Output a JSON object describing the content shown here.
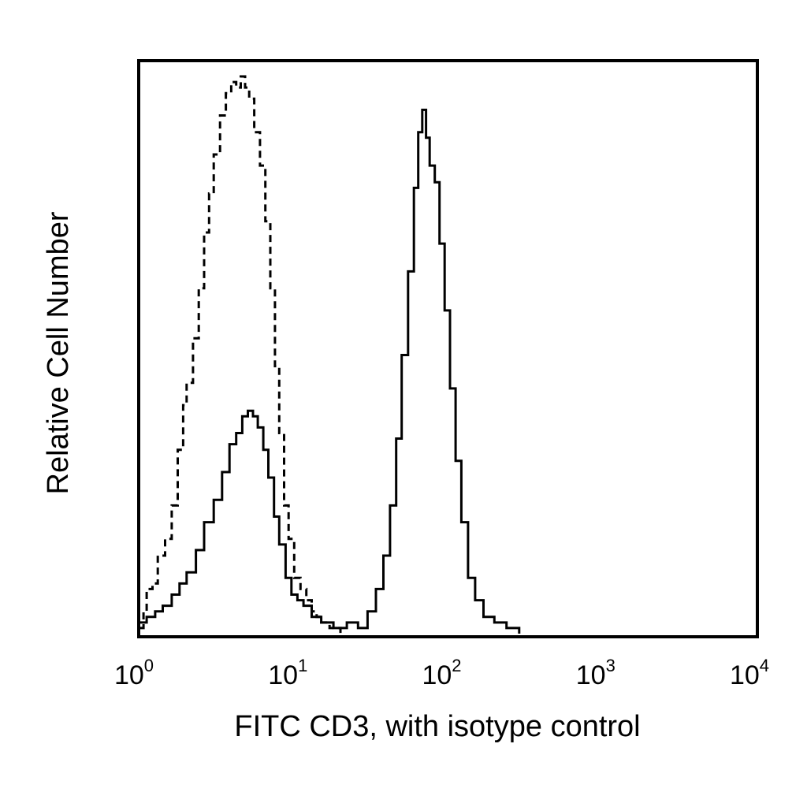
{
  "chart_data": {
    "type": "line",
    "title": "",
    "xlabel": "FITC CD3, with isotype control",
    "ylabel": "Relative Cell Number",
    "x_scale": "log",
    "xlim": [
      1,
      10000
    ],
    "ylim": [
      0,
      1.0
    ],
    "grid": false,
    "legend": "none",
    "x_ticks": [
      {
        "base": "10",
        "exp": "0",
        "value": 1
      },
      {
        "base": "10",
        "exp": "1",
        "value": 10
      },
      {
        "base": "10",
        "exp": "2",
        "value": 100
      },
      {
        "base": "10",
        "exp": "3",
        "value": 1000
      },
      {
        "base": "10",
        "exp": "4",
        "value": 10000
      }
    ],
    "series": [
      {
        "style": "dashed",
        "color": "#000000",
        "points": [
          [
            1.0,
            0.01
          ],
          [
            1.05,
            0.04
          ],
          [
            1.1,
            0.08
          ],
          [
            1.2,
            0.09
          ],
          [
            1.3,
            0.14
          ],
          [
            1.45,
            0.17
          ],
          [
            1.6,
            0.23
          ],
          [
            1.75,
            0.33
          ],
          [
            1.9,
            0.41
          ],
          [
            2.0,
            0.45
          ],
          [
            2.2,
            0.53
          ],
          [
            2.4,
            0.62
          ],
          [
            2.6,
            0.72
          ],
          [
            2.8,
            0.79
          ],
          [
            3.0,
            0.86
          ],
          [
            3.3,
            0.93
          ],
          [
            3.6,
            0.97
          ],
          [
            3.9,
            0.99
          ],
          [
            4.2,
            0.98
          ],
          [
            4.5,
            1.0
          ],
          [
            4.8,
            0.98
          ],
          [
            5.1,
            0.96
          ],
          [
            5.5,
            0.9
          ],
          [
            6.0,
            0.84
          ],
          [
            6.5,
            0.74
          ],
          [
            7.0,
            0.62
          ],
          [
            7.5,
            0.48
          ],
          [
            8.0,
            0.36
          ],
          [
            8.6,
            0.23
          ],
          [
            9.2,
            0.17
          ],
          [
            10.0,
            0.1
          ],
          [
            11.0,
            0.08
          ],
          [
            12.0,
            0.06
          ],
          [
            13.0,
            0.04
          ],
          [
            14.0,
            0.03
          ],
          [
            15.0,
            0.02
          ],
          [
            17.0,
            0.01
          ],
          [
            20.0,
            0.0
          ]
        ]
      },
      {
        "style": "solid",
        "color": "#000000",
        "points": [
          [
            1.0,
            0.02
          ],
          [
            1.1,
            0.03
          ],
          [
            1.25,
            0.04
          ],
          [
            1.4,
            0.05
          ],
          [
            1.6,
            0.07
          ],
          [
            1.8,
            0.09
          ],
          [
            2.0,
            0.11
          ],
          [
            2.3,
            0.15
          ],
          [
            2.6,
            0.2
          ],
          [
            3.0,
            0.24
          ],
          [
            3.4,
            0.29
          ],
          [
            3.8,
            0.34
          ],
          [
            4.2,
            0.36
          ],
          [
            4.6,
            0.39
          ],
          [
            5.0,
            0.4
          ],
          [
            5.4,
            0.39
          ],
          [
            5.8,
            0.37
          ],
          [
            6.3,
            0.33
          ],
          [
            6.8,
            0.28
          ],
          [
            7.4,
            0.21
          ],
          [
            8.0,
            0.16
          ],
          [
            8.8,
            0.1
          ],
          [
            9.6,
            0.07
          ],
          [
            10.5,
            0.06
          ],
          [
            11.5,
            0.05
          ],
          [
            13.0,
            0.03
          ],
          [
            15.0,
            0.02
          ],
          [
            18.0,
            0.01
          ],
          [
            22.0,
            0.02
          ],
          [
            26.0,
            0.01
          ],
          [
            30.0,
            0.04
          ],
          [
            34.0,
            0.08
          ],
          [
            38.0,
            0.14
          ],
          [
            42.0,
            0.23
          ],
          [
            46.0,
            0.35
          ],
          [
            50.0,
            0.5
          ],
          [
            55.0,
            0.65
          ],
          [
            60.0,
            0.8
          ],
          [
            64.0,
            0.9
          ],
          [
            68.0,
            0.94
          ],
          [
            72.0,
            0.89
          ],
          [
            76.0,
            0.84
          ],
          [
            82.0,
            0.81
          ],
          [
            88.0,
            0.7
          ],
          [
            95.0,
            0.58
          ],
          [
            103.0,
            0.44
          ],
          [
            112.0,
            0.31
          ],
          [
            122.0,
            0.2
          ],
          [
            135.0,
            0.1
          ],
          [
            150.0,
            0.06
          ],
          [
            170.0,
            0.03
          ],
          [
            200.0,
            0.02
          ],
          [
            240.0,
            0.01
          ],
          [
            290.0,
            0.0
          ]
        ]
      }
    ]
  }
}
